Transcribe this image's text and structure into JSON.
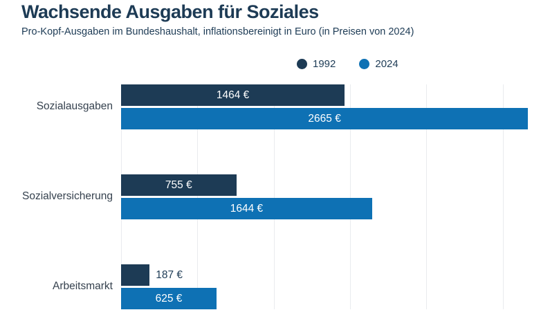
{
  "header": {
    "title": "Wachsende Ausgaben für Soziales",
    "subtitle": "Pro-Kopf-Ausgaben im Bundeshaushalt, inflationsbereinigt in Euro (in Preisen von 2024)"
  },
  "legend": {
    "items": [
      {
        "label": "1992",
        "color": "#1d3b55"
      },
      {
        "label": "2024",
        "color": "#0e71b4"
      }
    ]
  },
  "chart_data": {
    "type": "bar",
    "orientation": "horizontal",
    "title": "Wachsende Ausgaben für Soziales",
    "subtitle": "Pro-Kopf-Ausgaben im Bundeshaushalt, inflationsbereinigt in Euro (in Preisen von 2024)",
    "categories": [
      "Sozialausgaben",
      "Sozialversicherung",
      "Arbeitsmarkt"
    ],
    "series": [
      {
        "name": "1992",
        "color": "#1d3b55",
        "values": [
          1464,
          755,
          187
        ],
        "labels": [
          "1464 €",
          "755 €",
          "187 €"
        ]
      },
      {
        "name": "2024",
        "color": "#0e71b4",
        "values": [
          2665,
          1644,
          625
        ],
        "labels": [
          "2665 €",
          "1644 €",
          "625 €"
        ]
      }
    ],
    "value_suffix": " €",
    "xlim": [
      0,
      2750
    ],
    "gridline_step": 500,
    "grid": true,
    "legend_position": "top"
  },
  "colors": {
    "background": "#ffffff",
    "title_text": "#1d3b55",
    "category_text": "#35414e",
    "gridline": "#e9ebee",
    "value_inside_text": "#ffffff",
    "value_outside_text": "#1d3b55"
  }
}
